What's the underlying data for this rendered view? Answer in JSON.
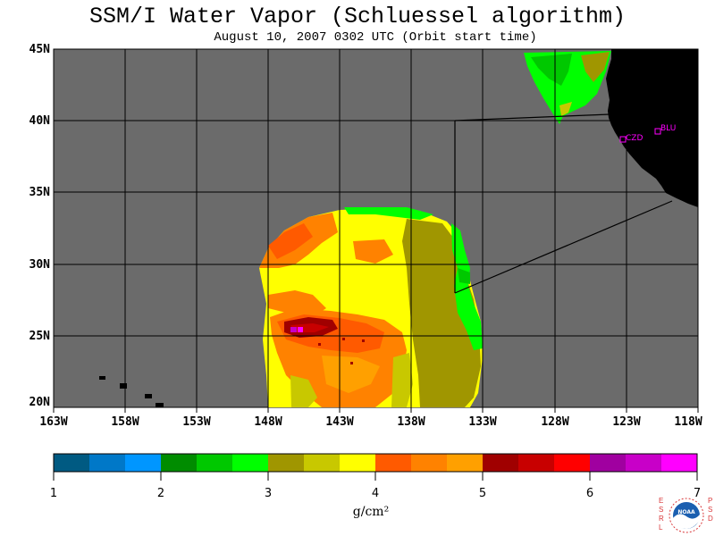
{
  "title": "SSM/I Water Vapor (Schluessel algorithm)",
  "subtitle": "August 10, 2007  0302 UTC  (Orbit start time)",
  "map": {
    "region": "Eastern North Pacific",
    "lat_range": [
      20,
      45
    ],
    "lon_range": [
      -163,
      -118
    ],
    "lat_labels": [
      "45N",
      "40N",
      "35N",
      "30N",
      "25N",
      "20N"
    ],
    "lon_labels": [
      "163W",
      "158W",
      "153W",
      "148W",
      "143W",
      "138W",
      "133W",
      "128W",
      "123W",
      "118W"
    ],
    "no_data_color": "#6b6b6b",
    "land_color": "#000000",
    "stations": [
      {
        "id": "CZD",
        "lat": 38.6,
        "lon": -123.2
      },
      {
        "id": "BLU",
        "lat": 39.2,
        "lon": -120.8
      }
    ]
  },
  "colorbar": {
    "labels": [
      "1",
      "2",
      "3",
      "4",
      "5",
      "6",
      "7"
    ],
    "units": "g/cm²",
    "colors": [
      "#005a82",
      "#0078c8",
      "#0096ff",
      "#008c00",
      "#00c800",
      "#00ff00",
      "#a09600",
      "#c8c800",
      "#ffff00",
      "#ff5a00",
      "#ff8200",
      "#ffa000",
      "#a00000",
      "#c80000",
      "#ff0000",
      "#a000a0",
      "#c800c8",
      "#ff00ff"
    ]
  },
  "logo": {
    "left_text": [
      "E",
      "S",
      "R",
      "L"
    ],
    "center_text": "NOAA",
    "right_text": [
      "P",
      "S",
      "D"
    ]
  }
}
